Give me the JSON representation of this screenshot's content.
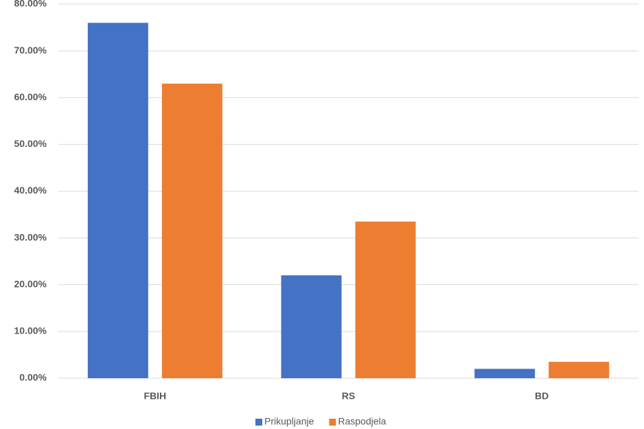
{
  "chart_data": {
    "type": "bar",
    "categories": [
      "FBIH",
      "RS",
      "BD"
    ],
    "series": [
      {
        "name": "Prikupljanje",
        "color": "#4472c4",
        "values": [
          76,
          22,
          2
        ]
      },
      {
        "name": "Raspodjela",
        "color": "#ed7d31",
        "values": [
          63,
          33.5,
          3.5
        ]
      }
    ],
    "ylim": [
      0,
      80
    ],
    "yticks": [
      {
        "value": 0,
        "label": "0.00%"
      },
      {
        "value": 10,
        "label": "10.00%"
      },
      {
        "value": 20,
        "label": "20.00%"
      },
      {
        "value": 30,
        "label": "30.00%"
      },
      {
        "value": 40,
        "label": "40.00%"
      },
      {
        "value": 50,
        "label": "50.00%"
      },
      {
        "value": 60,
        "label": "60.00%"
      },
      {
        "value": 70,
        "label": "70.00%"
      },
      {
        "value": 80,
        "label": "80.00%"
      }
    ],
    "grid": true,
    "legend": "bottom"
  }
}
